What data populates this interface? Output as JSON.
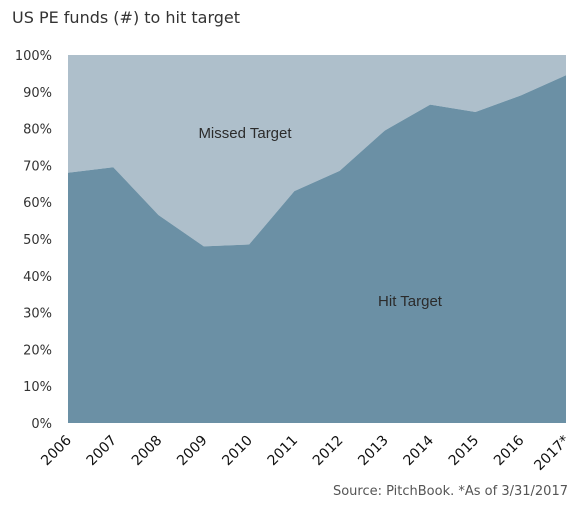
{
  "title": "US PE funds (#) to hit target",
  "source": "Source: PitchBook. *As of 3/31/2017",
  "colors": {
    "hit": "#6b90a5",
    "missed": "#aebfcb"
  },
  "chart_data": {
    "type": "area",
    "stacked": true,
    "percent": true,
    "categories": [
      "2006",
      "2007",
      "2008",
      "2009",
      "2010",
      "2011",
      "2012",
      "2013",
      "2014",
      "2015",
      "2016",
      "2017*"
    ],
    "series": [
      {
        "name": "Hit Target",
        "values": [
          68,
          69.5,
          56.5,
          48,
          48.5,
          63,
          68.5,
          79.5,
          86.5,
          84.5,
          89,
          94.5
        ]
      },
      {
        "name": "Missed Target",
        "values": [
          32,
          30.5,
          43.5,
          52,
          51.5,
          37,
          31.5,
          20.5,
          13.5,
          15.5,
          11,
          5.5
        ]
      }
    ],
    "yticks": [
      "0%",
      "10%",
      "20%",
      "30%",
      "40%",
      "50%",
      "60%",
      "70%",
      "80%",
      "90%",
      "100%"
    ],
    "ylim": [
      0,
      100
    ],
    "grid": false,
    "legend": "none; series labels drawn inside areas"
  }
}
